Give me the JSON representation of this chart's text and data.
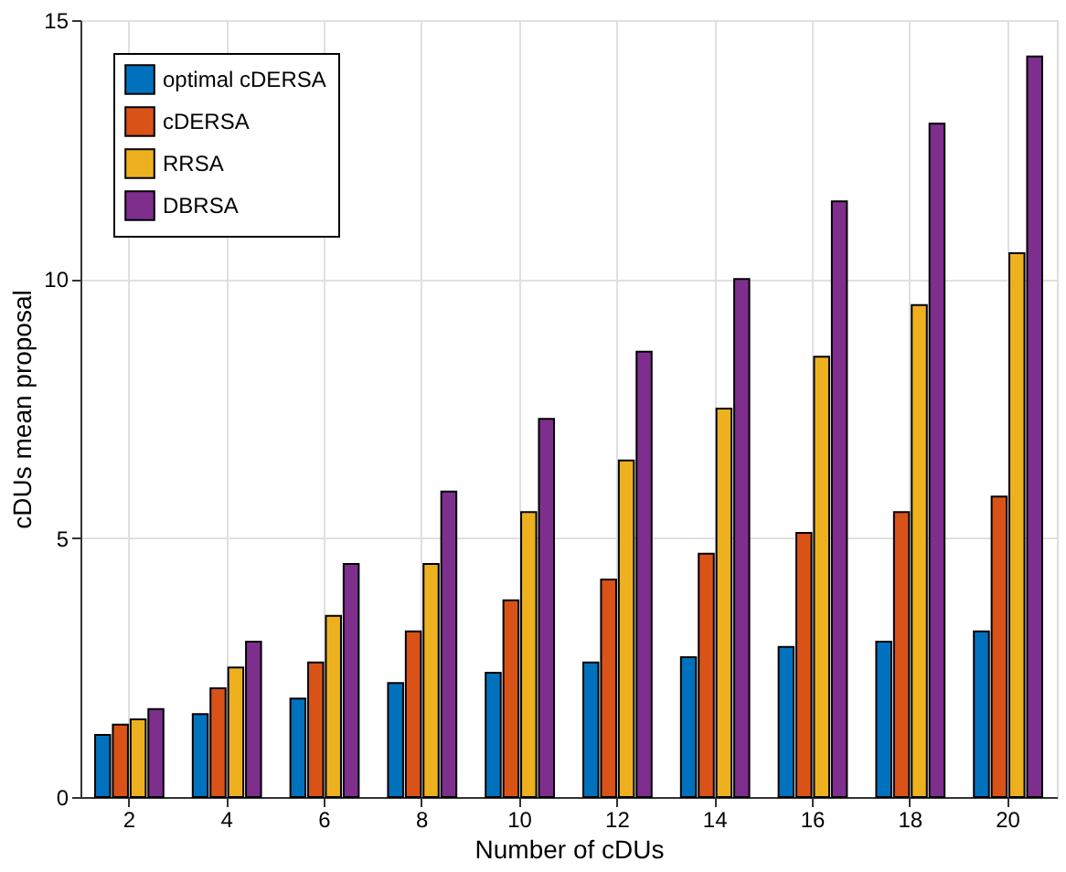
{
  "chart_data": {
    "type": "bar",
    "xlabel": "Number of cDUs",
    "ylabel": "cDUs mean proposal",
    "categories": [
      "2",
      "4",
      "6",
      "8",
      "10",
      "12",
      "14",
      "16",
      "18",
      "20"
    ],
    "series": [
      {
        "name": "optimal cDERSA",
        "color": "#0072bd",
        "values": [
          1.2,
          1.6,
          1.9,
          2.2,
          2.4,
          2.6,
          2.7,
          2.9,
          3.0,
          3.2
        ]
      },
      {
        "name": "cDERSA",
        "color": "#d95319",
        "values": [
          1.4,
          2.1,
          2.6,
          3.2,
          3.8,
          4.2,
          4.7,
          5.1,
          5.5,
          5.8
        ]
      },
      {
        "name": "RRSA",
        "color": "#edb120",
        "values": [
          1.5,
          2.5,
          3.5,
          4.5,
          5.5,
          6.5,
          7.5,
          8.5,
          9.5,
          10.5
        ]
      },
      {
        "name": "DBRSA",
        "color": "#7e2f8e",
        "values": [
          1.7,
          3.0,
          4.5,
          5.9,
          7.3,
          8.6,
          10.0,
          11.5,
          13.0,
          14.3
        ]
      }
    ],
    "ylim": [
      0,
      15
    ],
    "yticks": [
      0,
      5,
      10,
      15
    ],
    "grid": true,
    "legend": "top left"
  }
}
